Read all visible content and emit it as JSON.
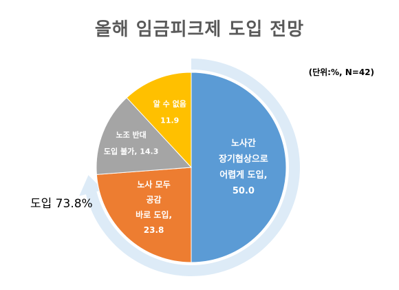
{
  "chart_data": {
    "type": "pie",
    "title": "올해 임금피크제 도입 전망",
    "unit_note": "(단위:%, N=42)",
    "start_angle_deg": 0,
    "direction": "clockwise",
    "slices": [
      {
        "label_lines": [
          "노사간",
          "장기협상으로",
          "어렵게 도입,"
        ],
        "value": 50.0,
        "value_text": "50.0",
        "color": "#5B9BD5"
      },
      {
        "label_lines": [
          "노사 모두",
          "공감",
          "바로 도입,"
        ],
        "value": 23.8,
        "value_text": "23.8",
        "color": "#ED7D31"
      },
      {
        "label_lines": [
          "노조 반대",
          "도입 불가, 14.3"
        ],
        "value": 14.3,
        "value_text": "",
        "color": "#A5A5A5"
      },
      {
        "label_lines": [
          "알 수 없음"
        ],
        "value": 11.9,
        "value_text": "11.9",
        "color": "#FFC000"
      }
    ],
    "annotation": {
      "text": "도입 73.8%",
      "value": 73.8,
      "arrow_color": "#DDEBF7"
    }
  }
}
